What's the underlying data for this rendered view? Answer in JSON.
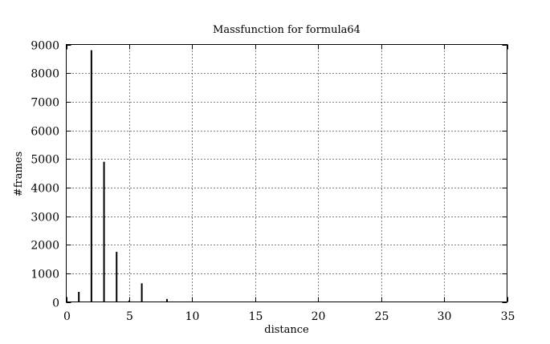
{
  "chart_data": {
    "type": "bar",
    "title": "Massfunction for formula64",
    "xlabel": "distance",
    "ylabel": "#frames",
    "xlim": [
      0,
      35
    ],
    "ylim": [
      0,
      9000
    ],
    "xticks": [
      0,
      5,
      10,
      15,
      20,
      25,
      30,
      35
    ],
    "yticks": [
      0,
      1000,
      2000,
      3000,
      4000,
      5000,
      6000,
      7000,
      8000,
      9000
    ],
    "grid": true,
    "legend": "none",
    "color": "#000000",
    "x": [
      1,
      2,
      3,
      4,
      5,
      6,
      8
    ],
    "values": [
      350,
      8800,
      4900,
      1750,
      50,
      650,
      100
    ]
  }
}
